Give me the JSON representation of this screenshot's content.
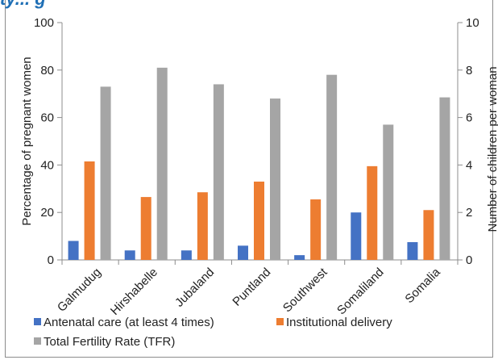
{
  "header_fragment": "ty... g",
  "chart_data": {
    "type": "bar",
    "categories": [
      "Galmudug",
      "Hirshabelle",
      "Jubaland",
      "Puntland",
      "Southwest",
      "Somaliland",
      "Somalia"
    ],
    "series": [
      {
        "name": "Antenatal care (at least 4 times)",
        "axis": "left",
        "color": "#4472c4",
        "values": [
          8,
          4,
          4,
          6,
          2,
          20,
          7.5
        ]
      },
      {
        "name": "Institutional delivery",
        "axis": "left",
        "color": "#ed7d31",
        "values": [
          41.5,
          26.5,
          28.5,
          33,
          25.5,
          39.5,
          21
        ]
      },
      {
        "name": "Total Fertility Rate (TFR)",
        "axis": "right",
        "color": "#a5a5a5",
        "values": [
          7.3,
          8.1,
          7.4,
          6.8,
          7.8,
          5.7,
          6.85
        ]
      }
    ],
    "ylabel": "Percentage of pregnant women",
    "y2label": "Number of children per woman",
    "ylim": [
      0,
      100
    ],
    "y2lim": [
      0,
      10
    ],
    "yticks": [
      "0",
      "20",
      "40",
      "60",
      "80",
      "100"
    ],
    "y2ticks": [
      "0",
      "2",
      "4",
      "6",
      "8",
      "10"
    ],
    "grid": false,
    "legend_position": "bottom"
  }
}
